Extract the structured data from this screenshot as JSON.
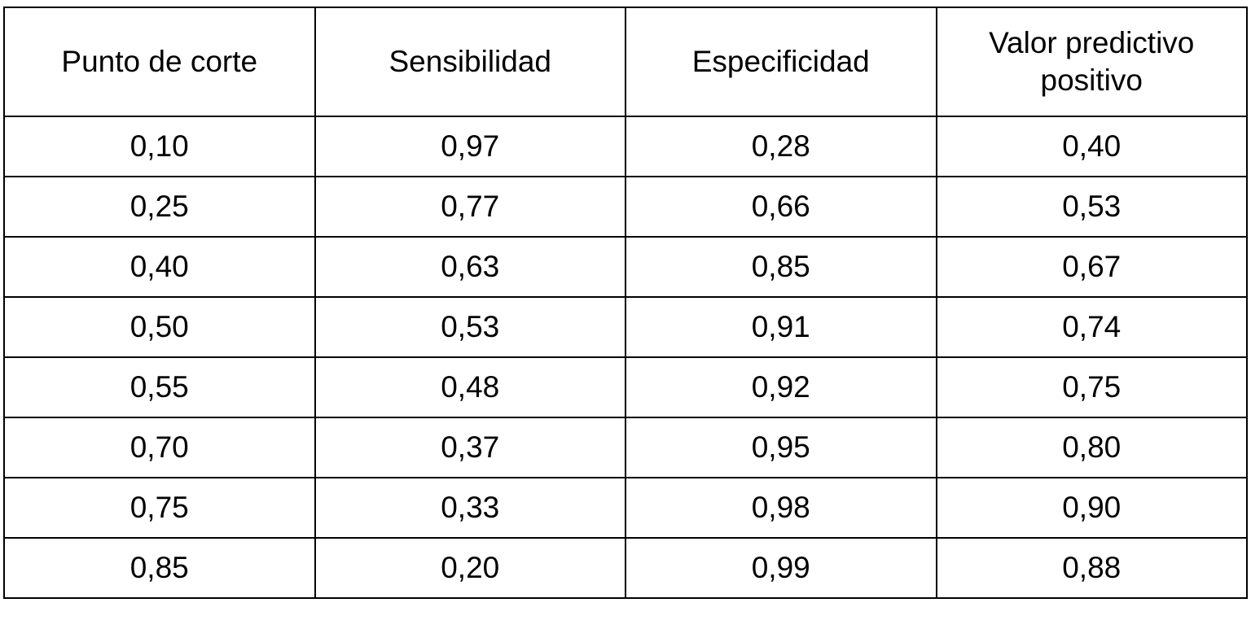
{
  "table": {
    "header": [
      "Punto de corte",
      "Sensibilidad",
      "Especificidad",
      "Valor predictivo positivo"
    ],
    "rows": [
      [
        "0,10",
        "0,97",
        "0,28",
        "0,40"
      ],
      [
        "0,25",
        "0,77",
        "0,66",
        "0,53"
      ],
      [
        "0,40",
        "0,63",
        "0,85",
        "0,67"
      ],
      [
        "0,50",
        "0,53",
        "0,91",
        "0,74"
      ],
      [
        "0,55",
        "0,48",
        "0,92",
        "0,75"
      ],
      [
        "0,70",
        "0,37",
        "0,95",
        "0,80"
      ],
      [
        "0,75",
        "0,33",
        "0,98",
        "0,90"
      ],
      [
        "0,85",
        "0,20",
        "0,99",
        "0,88"
      ]
    ]
  }
}
